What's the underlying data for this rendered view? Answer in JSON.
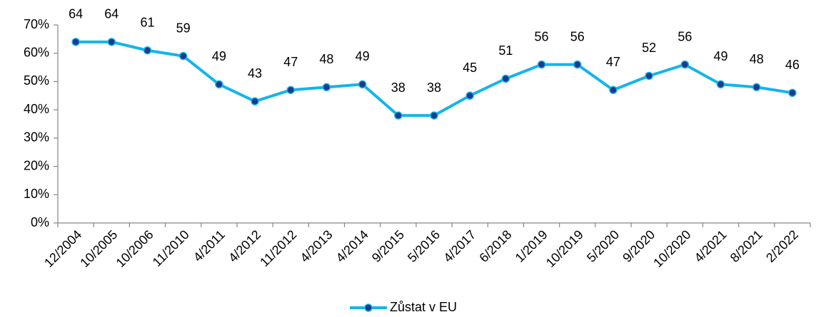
{
  "chart_data": {
    "type": "line",
    "categories": [
      "12/2004",
      "10/2005",
      "10/2006",
      "11/2010",
      "4/2011",
      "4/2012",
      "11/2012",
      "4/2013",
      "4/2014",
      "9/2015",
      "5/2016",
      "4/2017",
      "6/2018",
      "1/2019",
      "10/2019",
      "5/2020",
      "9/2020",
      "10/2020",
      "4/2021",
      "8/2021",
      "2/2022"
    ],
    "series": [
      {
        "name": "Zůstat v EU",
        "color": "#14b4ec",
        "marker_color": "#1f3a8a",
        "values": [
          64,
          64,
          61,
          59,
          49,
          43,
          47,
          48,
          49,
          38,
          38,
          45,
          51,
          56,
          56,
          47,
          52,
          56,
          49,
          48,
          46
        ]
      }
    ],
    "ylim": [
      0,
      70
    ],
    "yticks": [
      {
        "value": 0,
        "label": "0%"
      },
      {
        "value": 10,
        "label": "10%"
      },
      {
        "value": 20,
        "label": "20%"
      },
      {
        "value": 30,
        "label": "30%"
      },
      {
        "value": 40,
        "label": "40%"
      },
      {
        "value": 50,
        "label": "50%"
      },
      {
        "value": 60,
        "label": "60%"
      },
      {
        "value": 70,
        "label": "70%"
      }
    ],
    "grid": false,
    "legend": "bottom"
  }
}
